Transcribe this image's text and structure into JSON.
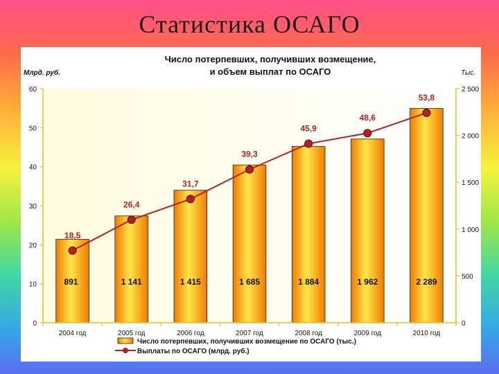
{
  "slide_title": "Статистика ОСАГО",
  "chart_data": {
    "type": "bar+line",
    "title_line1": "Число потерпевших, получивших возмещение,",
    "title_line2": "и объем выплат по ОСАГО",
    "left_axis_unit": "Млрд. руб.",
    "right_axis_unit": "Тыс.",
    "categories": [
      "2004 год",
      "2005 год",
      "2006 год",
      "2007 год",
      "2008 год",
      "2009 год",
      "2010 год"
    ],
    "series": [
      {
        "name": "Число потерпевших, получивших возмещение по ОСАГО (тыс.)",
        "type": "bar",
        "axis": "right",
        "values": [
          891,
          1141,
          1415,
          1685,
          1884,
          1962,
          2289
        ],
        "labels": [
          "891",
          "1 141",
          "1 415",
          "1 685",
          "1 884",
          "1 962",
          "2 289"
        ],
        "color": "#f39a00"
      },
      {
        "name": "Выплаты по ОСАГО (млрд. руб.)",
        "type": "line",
        "axis": "left",
        "values": [
          18.5,
          26.4,
          31.7,
          39.3,
          45.9,
          48.6,
          53.8
        ],
        "labels": [
          "18,5",
          "26,4",
          "31,7",
          "39,3",
          "45,9",
          "48,6",
          "53,8"
        ],
        "color": "#b22222"
      }
    ],
    "left_axis": {
      "min": 0,
      "max": 60,
      "ticks": [
        0,
        10,
        20,
        30,
        40,
        50,
        60
      ],
      "tick_labels": [
        "0",
        "10",
        "20",
        "30",
        "40",
        "50",
        "60"
      ]
    },
    "right_axis": {
      "min": 0,
      "max": 2500,
      "ticks": [
        0,
        500,
        1000,
        1500,
        2000,
        2500
      ],
      "tick_labels": [
        "0",
        "500",
        "1 000",
        "1 500",
        "2 000",
        "2 500"
      ]
    },
    "legend_position": "bottom",
    "grid": false,
    "label_color": "#b22222"
  }
}
